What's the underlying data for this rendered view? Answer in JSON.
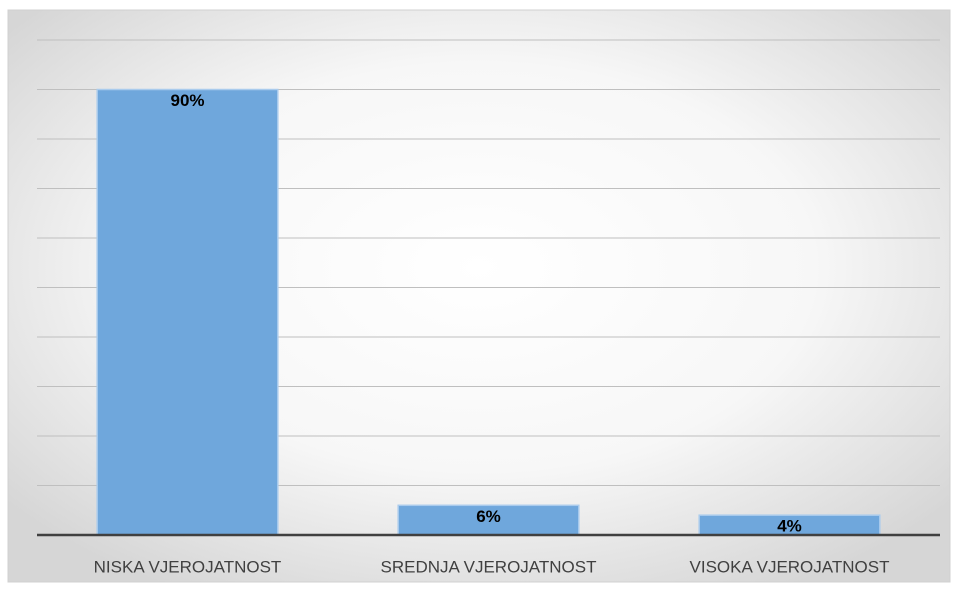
{
  "chart_data": {
    "type": "bar",
    "categories": [
      "NISKA VJEROJATNOST",
      "SREDNJA VJEROJATNOST",
      "VISOKA VJEROJATNOST"
    ],
    "values": [
      90,
      6,
      4
    ],
    "value_labels": [
      "90%",
      "6%",
      "4%"
    ],
    "color": "#6fa7dc",
    "ylim": [
      0,
      100
    ],
    "yticks": [
      0,
      10,
      20,
      30,
      40,
      50,
      60,
      70,
      80,
      90,
      100
    ],
    "grid": true
  }
}
